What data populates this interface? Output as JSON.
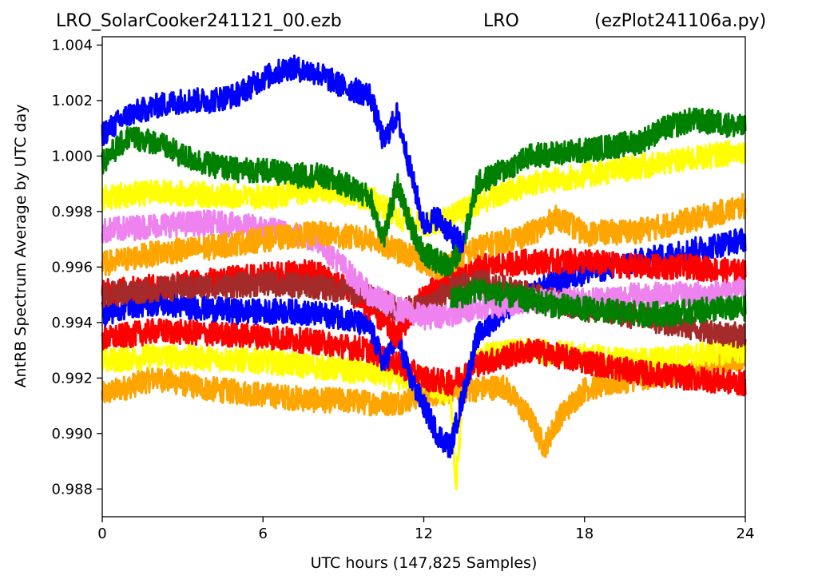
{
  "chart_data": {
    "type": "line",
    "title_left": "LRO_SolarCooker241121_00.ezb",
    "title_center": "LRO",
    "title_right": "(ezPlot241106a.py)",
    "xlabel": "UTC hours  (147,825 Samples)",
    "ylabel": "AntRB Spectrum Average by UTC day",
    "xlim": [
      0,
      24
    ],
    "ylim": [
      0.987,
      1.0043
    ],
    "x_ticks": [
      0,
      6,
      12,
      18,
      24
    ],
    "x_tick_labels": [
      "0",
      "6",
      "12",
      "18",
      "24"
    ],
    "y_ticks": [
      0.988,
      0.99,
      0.992,
      0.994,
      0.996,
      0.998,
      1.0,
      1.002,
      1.004
    ],
    "y_tick_labels": [
      "0.988",
      "0.990",
      "0.992",
      "0.994",
      "0.996",
      "0.998",
      "1.000",
      "1.002",
      "1.004"
    ],
    "grid": false,
    "legend": "none",
    "series": [
      {
        "color": "#ffa500",
        "x": [
          0,
          1,
          2,
          3,
          4,
          5,
          6,
          7,
          8,
          9,
          10,
          11,
          12,
          13,
          14,
          15,
          16,
          16.5,
          17,
          18,
          19,
          20,
          21,
          22,
          23,
          24
        ],
        "y": [
          0.9914,
          0.9917,
          0.992,
          0.9918,
          0.9916,
          0.9915,
          0.9914,
          0.9913,
          0.9912,
          0.9912,
          0.9911,
          0.9911,
          0.9914,
          0.9915,
          0.9916,
          0.9917,
          0.9905,
          0.9895,
          0.9905,
          0.9916,
          0.9918,
          0.992,
          0.9921,
          0.9923,
          0.9925,
          0.9928
        ]
      },
      {
        "color": "#ffff00",
        "x": [
          0,
          2,
          4,
          6,
          8,
          10,
          11,
          12,
          12.5,
          13,
          13.2,
          13.5,
          14,
          16,
          18,
          20,
          22,
          24
        ],
        "y": [
          0.9926,
          0.9928,
          0.9927,
          0.9926,
          0.9924,
          0.9922,
          0.992,
          0.992,
          0.9915,
          0.9915,
          0.988,
          0.992,
          0.9928,
          0.993,
          0.9928,
          0.9926,
          0.9928,
          0.993
        ]
      },
      {
        "color": "#ff0000",
        "x": [
          0,
          2,
          4,
          6,
          8,
          10,
          11,
          12,
          13,
          14,
          16,
          18,
          20,
          22,
          24
        ],
        "y": [
          0.9934,
          0.9937,
          0.9936,
          0.9935,
          0.9933,
          0.993,
          0.9925,
          0.992,
          0.9918,
          0.9925,
          0.993,
          0.9926,
          0.9922,
          0.992,
          0.9918
        ]
      },
      {
        "color": "#0000ff",
        "x": [
          0,
          1,
          2,
          3,
          4,
          5,
          6,
          7,
          8,
          9,
          10,
          10.5,
          11,
          11.5,
          12,
          12.5,
          13,
          13.5,
          14,
          15,
          16,
          17,
          18,
          20,
          22,
          24
        ],
        "y": [
          0.9943,
          0.9946,
          0.9947,
          0.9946,
          0.9945,
          0.9944,
          0.9944,
          0.9944,
          0.9943,
          0.9942,
          0.9938,
          0.9925,
          0.9935,
          0.992,
          0.991,
          0.99,
          0.9895,
          0.9915,
          0.9935,
          0.9945,
          0.995,
          0.9955,
          0.9958,
          0.9962,
          0.9966,
          0.997
        ]
      },
      {
        "color": "#ff0000",
        "x": [
          0,
          1,
          2,
          3,
          4,
          5,
          6,
          7,
          8,
          9,
          10,
          11,
          12,
          13,
          14,
          16,
          18,
          20,
          22,
          24
        ],
        "y": [
          0.9951,
          0.9952,
          0.9953,
          0.9954,
          0.9955,
          0.9956,
          0.9957,
          0.9958,
          0.9958,
          0.9953,
          0.9945,
          0.9935,
          0.995,
          0.9955,
          0.996,
          0.9962,
          0.9962,
          0.996,
          0.996,
          0.9958
        ]
      },
      {
        "color": "#a52a2a",
        "x": [
          0,
          2,
          4,
          6,
          8,
          10,
          11,
          12,
          13,
          14,
          16,
          18,
          20,
          22,
          24
        ],
        "y": [
          0.995,
          0.9952,
          0.9953,
          0.9954,
          0.9953,
          0.995,
          0.9945,
          0.9945,
          0.9952,
          0.9955,
          0.995,
          0.9945,
          0.9942,
          0.9938,
          0.9935
        ]
      },
      {
        "color": "#ee82ee",
        "x": [
          0,
          2,
          4,
          6,
          8,
          9,
          10,
          11,
          12,
          13,
          14,
          16,
          18,
          20,
          22,
          24
        ],
        "y": [
          0.9973,
          0.9975,
          0.9976,
          0.9974,
          0.997,
          0.996,
          0.995,
          0.9945,
          0.9942,
          0.9943,
          0.9945,
          0.9948,
          0.9948,
          0.995,
          0.995,
          0.9952
        ]
      },
      {
        "color": "#ffa500",
        "x": [
          0,
          2,
          4,
          6,
          8,
          10,
          11,
          12,
          12.5,
          13,
          14,
          16,
          17,
          18,
          20,
          22,
          24
        ],
        "y": [
          0.9961,
          0.9965,
          0.9967,
          0.997,
          0.9972,
          0.997,
          0.9966,
          0.9962,
          0.996,
          0.9962,
          0.9967,
          0.9972,
          0.9978,
          0.9972,
          0.9973,
          0.9977,
          0.9982
        ]
      },
      {
        "color": "#ffff00",
        "x": [
          0,
          2,
          4,
          6,
          8,
          10,
          11,
          12,
          13,
          14,
          16,
          18,
          20,
          22,
          24
        ],
        "y": [
          0.9985,
          0.9987,
          0.9986,
          0.9985,
          0.9988,
          0.9985,
          0.9978,
          0.9975,
          0.9978,
          0.9983,
          0.999,
          0.9993,
          0.9996,
          0.9999,
          1.0002
        ]
      },
      {
        "color": "#008000",
        "x": [
          0,
          1,
          2,
          3,
          4,
          5,
          6,
          7,
          8,
          9,
          10,
          10.5,
          11,
          11.5,
          12,
          12.5,
          13,
          13.5,
          14,
          16,
          18,
          20,
          21,
          22,
          23,
          24
        ],
        "y": [
          0.9998,
          1.0007,
          1.0005,
          1.0,
          0.9997,
          0.9995,
          0.9995,
          0.9993,
          0.9993,
          0.999,
          0.9985,
          0.997,
          0.999,
          0.9975,
          0.9965,
          0.9962,
          0.996,
          0.997,
          0.999,
          1.0,
          1.0002,
          1.0005,
          1.001,
          1.0013,
          1.0012,
          1.001
        ]
      },
      {
        "color": "#0000ff",
        "x": [
          0,
          1,
          2,
          3,
          4,
          5,
          6,
          7,
          8,
          9,
          10,
          10.5,
          11,
          11.5,
          12,
          12.5,
          13,
          13.5
        ],
        "y": [
          1.0008,
          1.0015,
          1.0018,
          1.002,
          1.002,
          1.0022,
          1.0028,
          1.0032,
          1.003,
          1.0025,
          1.0022,
          1.0005,
          1.0015,
          0.9995,
          0.9975,
          0.9978,
          0.9972,
          0.9968
        ]
      },
      {
        "color": "#008000",
        "x": [
          13,
          13.5,
          14,
          15,
          16,
          17,
          18,
          19,
          20,
          21,
          22,
          23,
          24
        ],
        "y": [
          0.9948,
          0.995,
          0.9952,
          0.995,
          0.9948,
          0.9946,
          0.9945,
          0.9944,
          0.9943,
          0.9943,
          0.9944,
          0.9945,
          0.9945
        ]
      }
    ]
  }
}
